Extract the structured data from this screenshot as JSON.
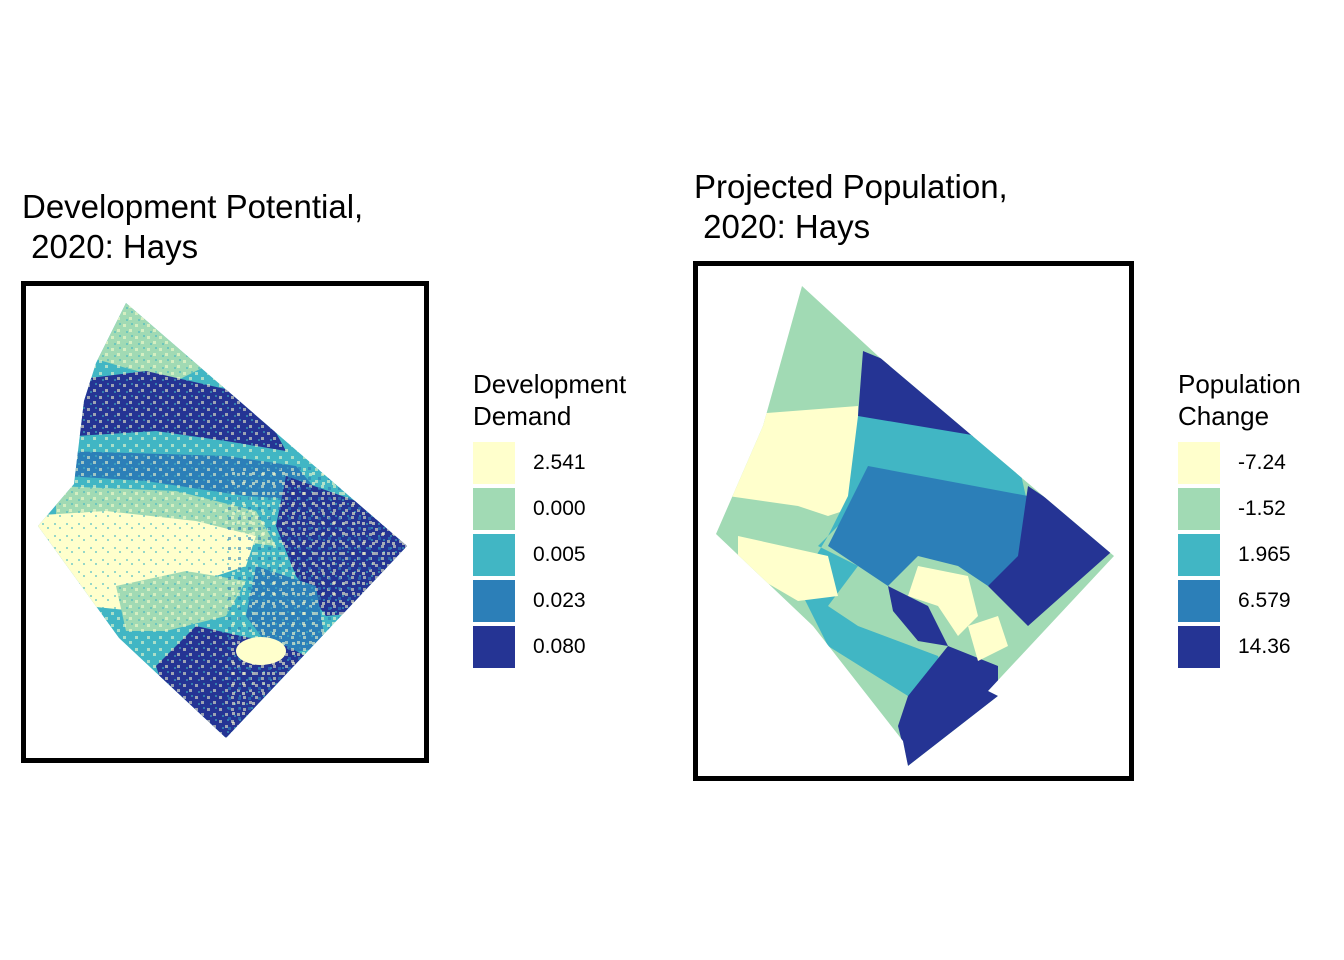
{
  "maps": [
    {
      "title": "Development Potential,\n 2020: Hays",
      "legend": {
        "title": "Development\nDemand",
        "entries": [
          {
            "label": "2.541",
            "color": "#ffffcc"
          },
          {
            "label": "0.000",
            "color": "#a1dab4"
          },
          {
            "label": "0.005",
            "color": "#41b6c4"
          },
          {
            "label": "0.023",
            "color": "#2c7fb8"
          },
          {
            "label": "0.080",
            "color": "#253494"
          }
        ]
      }
    },
    {
      "title": "Projected Population,\n 2020: Hays",
      "legend": {
        "title": "Population\nChange",
        "entries": [
          {
            "label": "-7.24",
            "color": "#ffffcc"
          },
          {
            "label": "-1.52",
            "color": "#a1dab4"
          },
          {
            "label": "1.965",
            "color": "#41b6c4"
          },
          {
            "label": "6.579",
            "color": "#2c7fb8"
          },
          {
            "label": "14.36",
            "color": "#253494"
          }
        ]
      }
    }
  ]
}
